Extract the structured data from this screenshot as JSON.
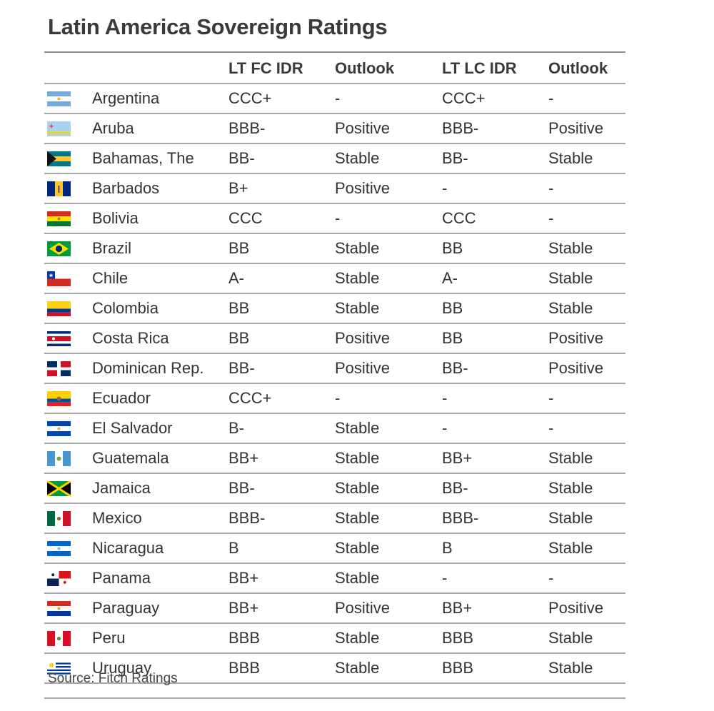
{
  "title": "Latin America Sovereign Ratings",
  "headers": {
    "country": "",
    "lt_fc_idr": "LT FC IDR",
    "fc_outlook": "Outlook",
    "lt_lc_idr": "LT LC IDR",
    "lc_outlook": "Outlook"
  },
  "rows": [
    {
      "country": "Argentina",
      "fc": "CCC+",
      "fc_outlook": "-",
      "lc": "CCC+",
      "lc_outlook": "-",
      "flag_icon": "argentina-flag-icon"
    },
    {
      "country": "Aruba",
      "fc": "BBB-",
      "fc_outlook": "Positive",
      "lc": "BBB-",
      "lc_outlook": "Positive",
      "flag_icon": "aruba-flag-icon"
    },
    {
      "country": "Bahamas, The",
      "fc": "BB-",
      "fc_outlook": "Stable",
      "lc": "BB-",
      "lc_outlook": "Stable",
      "flag_icon": "bahamas-flag-icon"
    },
    {
      "country": "Barbados",
      "fc": "B+",
      "fc_outlook": "Positive",
      "lc": "-",
      "lc_outlook": "-",
      "flag_icon": "barbados-flag-icon"
    },
    {
      "country": "Bolivia",
      "fc": "CCC",
      "fc_outlook": "-",
      "lc": "CCC",
      "lc_outlook": "-",
      "flag_icon": "bolivia-flag-icon"
    },
    {
      "country": "Brazil",
      "fc": "BB",
      "fc_outlook": "Stable",
      "lc": "BB",
      "lc_outlook": "Stable",
      "flag_icon": "brazil-flag-icon"
    },
    {
      "country": "Chile",
      "fc": "A-",
      "fc_outlook": "Stable",
      "lc": "A-",
      "lc_outlook": "Stable",
      "flag_icon": "chile-flag-icon"
    },
    {
      "country": "Colombia",
      "fc": "BB",
      "fc_outlook": "Stable",
      "lc": "BB",
      "lc_outlook": "Stable",
      "flag_icon": "colombia-flag-icon"
    },
    {
      "country": "Costa Rica",
      "fc": "BB",
      "fc_outlook": "Positive",
      "lc": "BB",
      "lc_outlook": "Positive",
      "flag_icon": "costa-rica-flag-icon"
    },
    {
      "country": "Dominican Rep.",
      "fc": "BB-",
      "fc_outlook": "Positive",
      "lc": "BB-",
      "lc_outlook": "Positive",
      "flag_icon": "dominican-republic-flag-icon"
    },
    {
      "country": "Ecuador",
      "fc": "CCC+",
      "fc_outlook": "-",
      "lc": "-",
      "lc_outlook": "-",
      "flag_icon": "ecuador-flag-icon"
    },
    {
      "country": "El Salvador",
      "fc": "B-",
      "fc_outlook": "Stable",
      "lc": "-",
      "lc_outlook": "-",
      "flag_icon": "el-salvador-flag-icon"
    },
    {
      "country": "Guatemala",
      "fc": "BB+",
      "fc_outlook": "Stable",
      "lc": "BB+",
      "lc_outlook": "Stable",
      "flag_icon": "guatemala-flag-icon"
    },
    {
      "country": "Jamaica",
      "fc": "BB-",
      "fc_outlook": "Stable",
      "lc": "BB-",
      "lc_outlook": "Stable",
      "flag_icon": "jamaica-flag-icon"
    },
    {
      "country": "Mexico",
      "fc": "BBB-",
      "fc_outlook": "Stable",
      "lc": "BBB-",
      "lc_outlook": "Stable",
      "flag_icon": "mexico-flag-icon"
    },
    {
      "country": "Nicaragua",
      "fc": "B",
      "fc_outlook": "Stable",
      "lc": "B",
      "lc_outlook": "Stable",
      "flag_icon": "nicaragua-flag-icon"
    },
    {
      "country": "Panama",
      "fc": "BB+",
      "fc_outlook": "Stable",
      "lc": "-",
      "lc_outlook": "-",
      "flag_icon": "panama-flag-icon"
    },
    {
      "country": "Paraguay",
      "fc": "BB+",
      "fc_outlook": "Positive",
      "lc": "BB+",
      "lc_outlook": "Positive",
      "flag_icon": "paraguay-flag-icon"
    },
    {
      "country": "Peru",
      "fc": "BBB",
      "fc_outlook": "Stable",
      "lc": "BBB",
      "lc_outlook": "Stable",
      "flag_icon": "peru-flag-icon"
    },
    {
      "country": "Uruguay",
      "fc": "BBB",
      "fc_outlook": "Stable",
      "lc": "BBB",
      "lc_outlook": "Stable",
      "flag_icon": "uruguay-flag-icon"
    }
  ],
  "source": "Source: Fitch Ratings"
}
